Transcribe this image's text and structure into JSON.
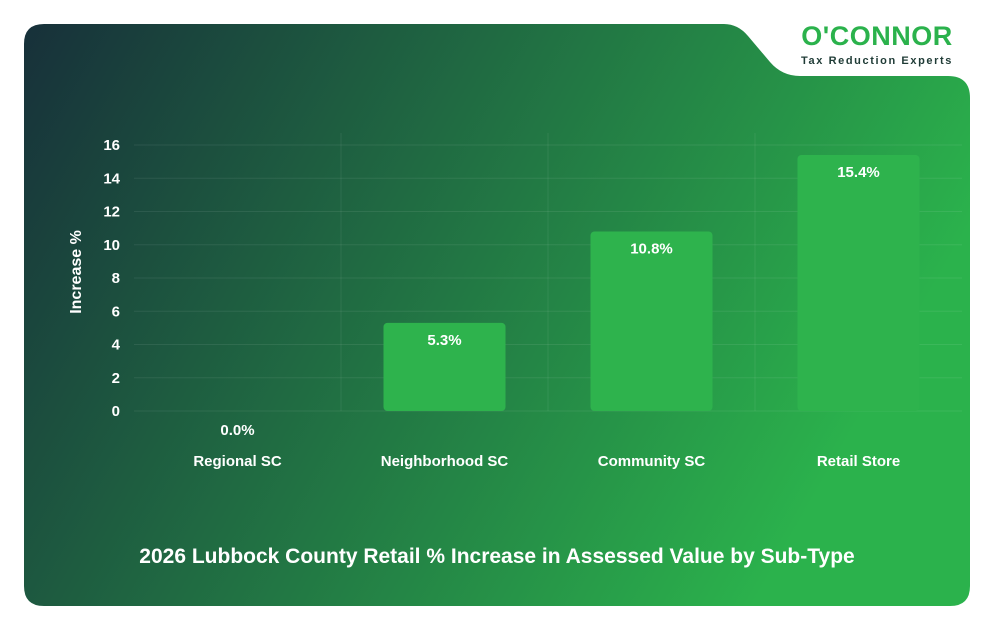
{
  "brand": {
    "name": "O'CONNOR",
    "tagline": "Tax Reduction Experts",
    "accent": "#2bb24c",
    "tagline_color": "#1f3b36"
  },
  "colors": {
    "background_dark": "#17303a",
    "background_light": "#2bb24c",
    "bar": "#2eb34d",
    "text": "#ffffff"
  },
  "chart_data": {
    "type": "bar",
    "title": "2026 Lubbock County Retail % Increase in Assessed Value by Sub-Type",
    "xlabel": "",
    "ylabel": "Increase %",
    "categories": [
      "Regional SC",
      "Neighborhood SC",
      "Community SC",
      "Retail Store"
    ],
    "values": [
      0.0,
      5.3,
      10.8,
      15.4
    ],
    "data_labels": [
      "0.0%",
      "5.3%",
      "10.8%",
      "15.4%"
    ],
    "ylim": [
      0,
      16
    ],
    "yticks": [
      0,
      2,
      4,
      6,
      8,
      10,
      12,
      14,
      16
    ],
    "grid": true,
    "legend": "none"
  }
}
